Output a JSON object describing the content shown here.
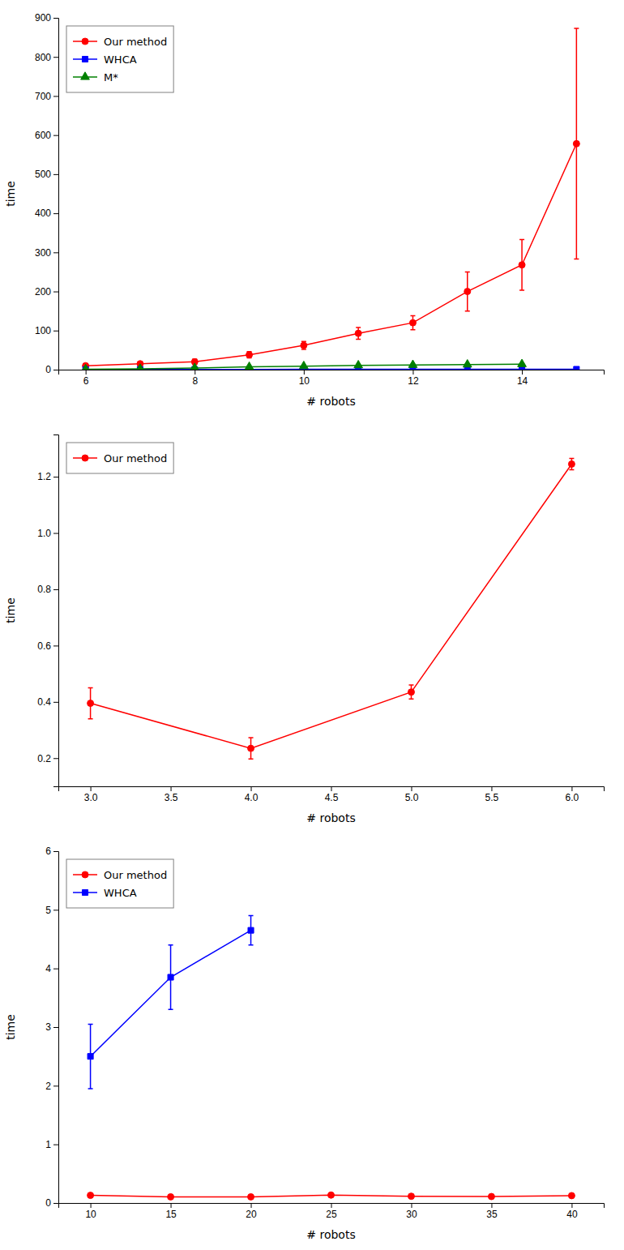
{
  "chart_data": [
    {
      "type": "line",
      "xlabel": "# robots",
      "ylabel": "time",
      "xlim": [
        5.5,
        15.5
      ],
      "xticks": [
        6,
        8,
        10,
        12,
        14
      ],
      "ylim": [
        0,
        900
      ],
      "yticks": [
        0,
        100,
        200,
        300,
        400,
        500,
        600,
        700,
        800,
        900
      ],
      "grid": false,
      "legend": "upper left",
      "series": [
        {
          "name": "Our method",
          "color": "#ff0000",
          "marker": "circle",
          "x": [
            6,
            7,
            8,
            9,
            10,
            11,
            12,
            13,
            14,
            15
          ],
          "values": [
            10,
            15,
            20,
            38,
            62,
            93,
            120,
            200,
            268,
            578
          ],
          "errors": [
            5,
            6,
            7,
            8,
            10,
            15,
            18,
            50,
            65,
            295
          ]
        },
        {
          "name": "WHCA",
          "color": "#0000ff",
          "marker": "square",
          "x": [
            6,
            7,
            8,
            9,
            10,
            11,
            12,
            13,
            14,
            15
          ],
          "values": [
            0.5,
            0.5,
            0.5,
            0.5,
            1.0,
            1.0,
            1.0,
            1.0,
            1.0,
            1.0
          ],
          "errors": [
            0.2,
            0.2,
            0.2,
            0.2,
            0.3,
            0.3,
            0.3,
            0.3,
            0.3,
            0.3
          ]
        },
        {
          "name": "M*",
          "color": "#008000",
          "marker": "triangle",
          "x": [
            6,
            7,
            8,
            9,
            10,
            11,
            12,
            13,
            14
          ],
          "values": [
            1.0,
            2.0,
            4.0,
            7.0,
            9.0,
            11.0,
            12.0,
            13.0,
            14.0
          ],
          "errors": [
            0.3,
            0.5,
            0.8,
            1.0,
            1.5,
            1.5,
            1.5,
            1.5,
            1.5
          ]
        }
      ]
    },
    {
      "type": "line",
      "xlabel": "# robots",
      "ylabel": "time",
      "xlim": [
        2.8,
        6.2
      ],
      "xticks": [
        {
          "value": 3,
          "label": "3.0"
        },
        3.5,
        {
          "value": 4,
          "label": "4.0"
        },
        4.5,
        {
          "value": 5,
          "label": "5.0"
        },
        5.5,
        {
          "value": 6,
          "label": "6.0"
        }
      ],
      "ylim": [
        0.1,
        1.35
      ],
      "yticks": [
        0.2,
        0.4,
        0.6,
        0.8,
        {
          "value": 1,
          "label": "1.0"
        },
        1.2
      ],
      "grid": false,
      "legend": "upper left",
      "series": [
        {
          "name": "Our method",
          "color": "#ff0000",
          "marker": "circle",
          "x": [
            3,
            4,
            5,
            6
          ],
          "values": [
            0.395,
            0.235,
            0.435,
            1.245
          ],
          "errors": [
            0.055,
            0.038,
            0.025,
            0.02
          ]
        }
      ]
    },
    {
      "type": "line",
      "xlabel": "# robots",
      "ylabel": "time",
      "xlim": [
        8,
        42
      ],
      "xticks": [
        10,
        15,
        20,
        25,
        30,
        35,
        40
      ],
      "ylim": [
        0,
        6
      ],
      "yticks": [
        0,
        1,
        2,
        3,
        4,
        5,
        6
      ],
      "grid": false,
      "legend": "upper left",
      "series": [
        {
          "name": "Our method",
          "color": "#ff0000",
          "marker": "circle",
          "x": [
            10,
            15,
            20,
            25,
            30,
            35,
            40
          ],
          "values": [
            0.13,
            0.105,
            0.105,
            0.135,
            0.115,
            0.11,
            0.125
          ],
          "errors": [
            0.008,
            0.006,
            0.006,
            0.008,
            0.007,
            0.006,
            0.007
          ]
        },
        {
          "name": "WHCA",
          "color": "#0000ff",
          "marker": "square",
          "x": [
            10,
            15,
            20
          ],
          "values": [
            2.5,
            3.85,
            4.65
          ],
          "errors": [
            0.55,
            0.55,
            0.25
          ]
        }
      ]
    }
  ]
}
